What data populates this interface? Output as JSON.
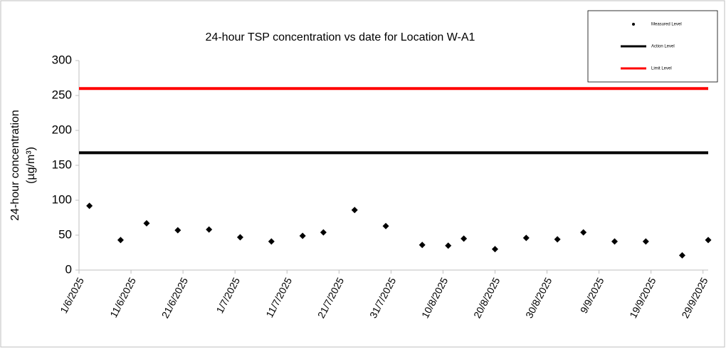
{
  "chart_data": {
    "type": "scatter",
    "title": "24-hour TSP concentration vs date for Location W-A1",
    "y_label": [
      "24-hour concentration",
      "(µg/m³)"
    ],
    "xlim": [
      "1/6/2025",
      "30/9/2025"
    ],
    "xticks": [
      "1/6/2025",
      "11/6/2025",
      "21/6/2025",
      "1/7/2025",
      "11/7/2025",
      "21/7/2025",
      "31/7/2025",
      "10/8/2025",
      "20/8/2025",
      "30/8/2025",
      "9/9/2025",
      "19/9/2025",
      "29/9/2025"
    ],
    "ylim": [
      0,
      300
    ],
    "yticks": [
      0,
      50,
      100,
      150,
      200,
      250,
      300
    ],
    "series": [
      {
        "name": "Measured Level",
        "type": "scatter",
        "color": "#000000",
        "x": [
          "3/6/2025",
          "9/6/2025",
          "14/6/2025",
          "20/6/2025",
          "26/6/2025",
          "2/7/2025",
          "8/7/2025",
          "14/7/2025",
          "18/7/2025",
          "24/7/2025",
          "30/7/2025",
          "6/8/2025",
          "11/8/2025",
          "14/8/2025",
          "20/8/2025",
          "26/8/2025",
          "1/9/2025",
          "6/9/2025",
          "12/9/2025",
          "18/9/2025",
          "25/9/2025",
          "30/9/2025"
        ],
        "values": [
          92,
          43,
          67,
          57,
          58,
          47,
          41,
          49,
          54,
          86,
          63,
          36,
          35,
          45,
          30,
          46,
          44,
          54,
          41,
          41,
          21,
          43
        ]
      },
      {
        "name": "Action Level",
        "type": "line",
        "color": "#000000",
        "x": [
          "1/6/2025",
          "30/9/2025"
        ],
        "values": [
          168,
          168
        ]
      },
      {
        "name": "Limit Level",
        "type": "line",
        "color": "#ff0000",
        "x": [
          "1/6/2025",
          "30/9/2025"
        ],
        "values": [
          260,
          260
        ]
      }
    ]
  }
}
